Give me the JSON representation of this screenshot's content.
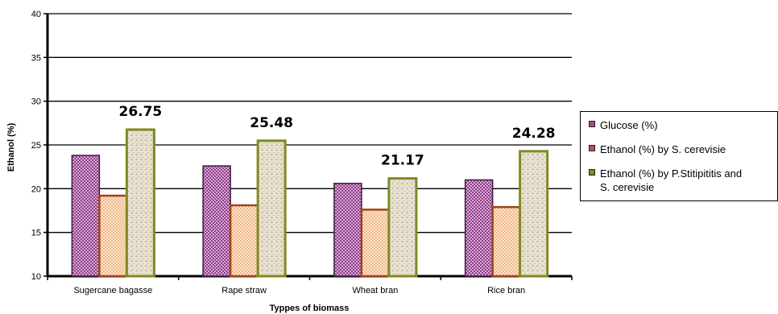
{
  "chart_data": {
    "type": "bar",
    "title": "",
    "xlabel": "Typpes of biomass",
    "ylabel": "Ethanol (%)",
    "ylim": [
      10,
      40
    ],
    "yticks": [
      10,
      15,
      20,
      25,
      30,
      35,
      40
    ],
    "grid": true,
    "legend_position": "right",
    "categories": [
      "Sugercane bagasse",
      "Rape straw",
      "Wheat bran",
      "Rice bran"
    ],
    "series": [
      {
        "name": "Glucose (%)",
        "values": [
          23.8,
          22.6,
          20.6,
          21.0
        ],
        "color": "#9b4f96"
      },
      {
        "name": "Ethanol (%) by S. cerevisie",
        "values": [
          19.2,
          18.1,
          17.6,
          17.9
        ],
        "color": "#f4b183"
      },
      {
        "name": "Ethanol (%) by P.Stitipititis and S. cerevisie",
        "values": [
          26.75,
          25.48,
          21.17,
          24.28
        ],
        "color": "#ddd4c0"
      }
    ],
    "data_labels": [
      "26.75",
      "25.48",
      "21.17",
      "24.28"
    ]
  },
  "legend": {
    "items": [
      {
        "label_line1": "Glucose (%)",
        "label_line2": ""
      },
      {
        "label_line1": "Ethanol (%) by S. cerevisie",
        "label_line2": ""
      },
      {
        "label_line1": "Ethanol (%) by P.Stitipititis and",
        "label_line2": "S. cerevisie"
      }
    ]
  }
}
